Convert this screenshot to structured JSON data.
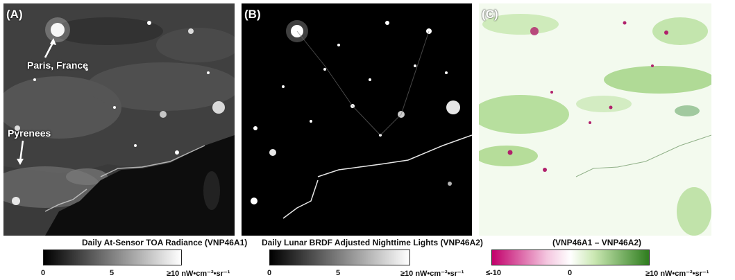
{
  "panels": [
    {
      "label": "(A)",
      "annotations": {
        "paris": "Paris, France",
        "pyrenees": "Pyrenees"
      },
      "colorbar": {
        "title": "Daily At-Sensor TOA Radiance (VNP46A1)",
        "min": "0",
        "mid": "5",
        "max": "≥10 nW•cm⁻²•sr⁻¹",
        "colors": [
          "#000000",
          "#ffffff"
        ]
      }
    },
    {
      "label": "(B)",
      "colorbar": {
        "title": "Daily Lunar BRDF Adjusted Nighttime Lights (VNP46A2)",
        "min": "0",
        "mid": "5",
        "max": "≥10 nW•cm⁻²•sr⁻¹",
        "colors": [
          "#000000",
          "#ffffff"
        ]
      }
    },
    {
      "label": "(C)",
      "colorbar": {
        "title": "(VNP46A1 – VNP46A2)",
        "min": "≤-10",
        "mid": "0",
        "max": "≥10 nW•cm⁻²•sr⁻¹",
        "colors": [
          "#c2006b",
          "#ffffff",
          "#2e7d1e"
        ]
      }
    }
  ]
}
